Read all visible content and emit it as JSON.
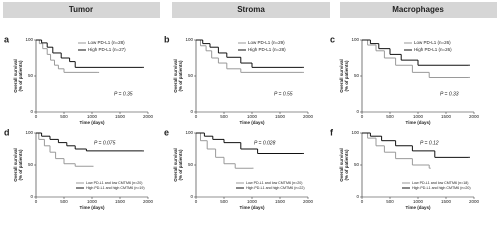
{
  "columns": [
    "Tumor",
    "Stroma",
    "Macrophages"
  ],
  "chart_data": [
    {
      "type": "line",
      "panel": "a",
      "ylabel": [
        "Overall survival",
        "(% of patients)"
      ],
      "xlabel": "Time (days)",
      "annotation": "P = 0.35",
      "xlim": [
        0,
        2000
      ],
      "xticks": [
        0,
        500,
        1000,
        1500,
        2000
      ],
      "ylim": [
        0,
        100
      ],
      "yticks": [
        0,
        50,
        100
      ],
      "series": [
        {
          "name": "Low PD-L1 (n=28)",
          "color": "#9a9a9a",
          "x": [
            0,
            60,
            120,
            200,
            260,
            330,
            400,
            500,
            1100
          ],
          "values": [
            100,
            95,
            88,
            80,
            72,
            65,
            60,
            55,
            55
          ]
        },
        {
          "name": "High PD-L1 (n=27)",
          "color": "#111111",
          "x": [
            0,
            100,
            200,
            300,
            450,
            600,
            700,
            1900
          ],
          "values": [
            100,
            96,
            90,
            82,
            75,
            70,
            62,
            62
          ]
        }
      ]
    },
    {
      "type": "line",
      "panel": "b",
      "ylabel": [
        "Overall survival",
        "(% of patients)"
      ],
      "xlabel": "Time (days)",
      "annotation": "P = 0.55",
      "xlim": [
        0,
        2000
      ],
      "xticks": [
        0,
        500,
        1000,
        1500,
        2000
      ],
      "ylim": [
        0,
        100
      ],
      "yticks": [
        0,
        50,
        100
      ],
      "series": [
        {
          "name": "Low PD-L1 (n=29)",
          "color": "#9a9a9a",
          "x": [
            0,
            80,
            180,
            280,
            400,
            550,
            800,
            1900
          ],
          "values": [
            100,
            92,
            85,
            75,
            68,
            60,
            55,
            55
          ]
        },
        {
          "name": "High PD-L1 (n=28)",
          "color": "#111111",
          "x": [
            0,
            120,
            250,
            400,
            550,
            800,
            1000,
            1900
          ],
          "values": [
            100,
            95,
            90,
            82,
            76,
            68,
            62,
            62
          ]
        }
      ]
    },
    {
      "type": "line",
      "panel": "c",
      "ylabel": [
        "Overall survival",
        "(% of patients)"
      ],
      "xlabel": "Time (days)",
      "annotation": "P = 0.33",
      "xlim": [
        0,
        2000
      ],
      "xticks": [
        0,
        500,
        1000,
        1500,
        2000
      ],
      "ylim": [
        0,
        100
      ],
      "yticks": [
        0,
        50,
        100
      ],
      "series": [
        {
          "name": "Low PD-L1 (n=26)",
          "color": "#9a9a9a",
          "x": [
            0,
            100,
            250,
            400,
            600,
            900,
            1200,
            1900
          ],
          "values": [
            100,
            93,
            85,
            75,
            65,
            55,
            48,
            48
          ]
        },
        {
          "name": "High PD-L1 (n=26)",
          "color": "#111111",
          "x": [
            0,
            150,
            300,
            500,
            700,
            1000,
            1900
          ],
          "values": [
            100,
            95,
            88,
            80,
            72,
            65,
            65
          ]
        }
      ]
    },
    {
      "type": "line",
      "panel": "d",
      "ylabel": [
        "Overall survival",
        "(% of patients)"
      ],
      "xlabel": "Time (days)",
      "annotation": "P = 0.075",
      "xlim": [
        0,
        2000
      ],
      "xticks": [
        0,
        500,
        1000,
        1500,
        2000
      ],
      "ylim": [
        0,
        100
      ],
      "yticks": [
        0,
        50,
        100
      ],
      "series": [
        {
          "name": "Low PD-L1 and low CMTM6 (n=20)",
          "color": "#9a9a9a",
          "x": [
            0,
            50,
            150,
            250,
            350,
            500,
            700,
            1000
          ],
          "values": [
            100,
            90,
            80,
            70,
            60,
            52,
            48,
            48
          ]
        },
        {
          "name": "High PD-L1 and high CMTM6 (n=19)",
          "color": "#111111",
          "x": [
            0,
            100,
            250,
            400,
            550,
            700,
            900,
            1900
          ],
          "values": [
            100,
            95,
            90,
            85,
            80,
            75,
            72,
            72
          ]
        }
      ]
    },
    {
      "type": "line",
      "panel": "e",
      "ylabel": [
        "Overall survival",
        "(% of patients)"
      ],
      "xlabel": "Time (days)",
      "annotation": "P = 0.028",
      "xlim": [
        0,
        2000
      ],
      "xticks": [
        0,
        500,
        1000,
        1500,
        2000
      ],
      "ylim": [
        0,
        100
      ],
      "yticks": [
        0,
        50,
        100
      ],
      "series": [
        {
          "name": "Low PD-L1 and low CMTM6 (n=20)",
          "color": "#9a9a9a",
          "x": [
            0,
            80,
            200,
            350,
            500,
            700,
            1000
          ],
          "values": [
            100,
            88,
            75,
            62,
            52,
            45,
            45
          ]
        },
        {
          "name": "High PD-L1 and high CMTM6 (n=22)",
          "color": "#111111",
          "x": [
            0,
            150,
            300,
            500,
            800,
            1100,
            1900
          ],
          "values": [
            100,
            95,
            90,
            85,
            75,
            68,
            68
          ]
        }
      ]
    },
    {
      "type": "line",
      "panel": "f",
      "ylabel": [
        "Overall survival",
        "(% of patients)"
      ],
      "xlabel": "Time (days)",
      "annotation": "P = 0.12",
      "xlim": [
        0,
        2000
      ],
      "xticks": [
        0,
        500,
        1000,
        1500,
        2000
      ],
      "ylim": [
        0,
        100
      ],
      "yticks": [
        0,
        50,
        100
      ],
      "series": [
        {
          "name": "Low PD-L1 and low CMTM6 (n=18)",
          "color": "#9a9a9a",
          "x": [
            0,
            100,
            250,
            400,
            600,
            900,
            1200
          ],
          "values": [
            100,
            92,
            80,
            70,
            60,
            50,
            45
          ]
        },
        {
          "name": "High PD-L1 and high CMTM6 (n=20)",
          "color": "#111111",
          "x": [
            0,
            150,
            350,
            600,
            900,
            1300,
            1900
          ],
          "values": [
            100,
            95,
            88,
            80,
            72,
            62,
            62
          ]
        }
      ]
    }
  ]
}
